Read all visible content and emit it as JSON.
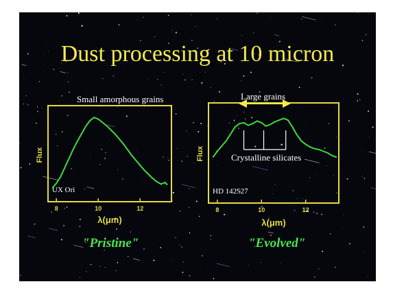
{
  "slide": {
    "title": "Dust processing at 10 micron",
    "left_caption": "Small amorphous grains",
    "right_caption": "Large grains",
    "right_annotation": "Crystalline silicates",
    "left_label": "\"Pristine\"",
    "right_label": "\"Evolved\""
  },
  "colors": {
    "background": "#05070d",
    "title": "#f4ea4e",
    "frame": "#e6dc3c",
    "curve": "#3ddc3a",
    "label_green": "#47e64a"
  },
  "chart_data": [
    {
      "type": "line",
      "title": "",
      "xlabel": "λ(μm)",
      "ylabel": "Flux",
      "xlim": [
        7.6,
        13.5
      ],
      "ylim": [
        0,
        1
      ],
      "xticks": [
        8,
        10,
        12
      ],
      "xtick_labels": [
        "8",
        "10",
        "12"
      ],
      "annotation": "UX Ori",
      "series": [
        {
          "x": [
            7.8,
            8.0,
            8.2,
            8.4,
            8.6,
            8.8,
            9.0,
            9.2,
            9.4,
            9.6,
            9.8,
            10.0,
            10.2,
            10.4,
            10.6,
            10.8,
            11.0,
            11.2,
            11.4,
            11.6,
            11.8,
            12.0,
            12.2,
            12.4,
            12.6,
            12.8,
            13.0,
            13.2,
            13.3
          ],
          "y": [
            0.08,
            0.14,
            0.22,
            0.33,
            0.44,
            0.55,
            0.65,
            0.74,
            0.83,
            0.9,
            0.94,
            0.92,
            0.88,
            0.84,
            0.79,
            0.74,
            0.68,
            0.62,
            0.55,
            0.48,
            0.42,
            0.36,
            0.3,
            0.25,
            0.2,
            0.16,
            0.13,
            0.15,
            0.12
          ]
        }
      ]
    },
    {
      "type": "line",
      "title": "",
      "xlabel": "λ(μm)",
      "ylabel": "Flux",
      "xlim": [
        7.6,
        13.5
      ],
      "ylim": [
        0,
        1
      ],
      "xticks": [
        8,
        10,
        12
      ],
      "xtick_labels": [
        "8",
        "10",
        "12"
      ],
      "annotation": "HD 142527",
      "series": [
        {
          "x": [
            7.8,
            8.0,
            8.2,
            8.4,
            8.6,
            8.8,
            9.0,
            9.2,
            9.4,
            9.6,
            9.8,
            10.0,
            10.2,
            10.4,
            10.6,
            10.8,
            11.0,
            11.2,
            11.4,
            11.6,
            11.8,
            12.0,
            12.2,
            12.4,
            12.6,
            12.8,
            13.0,
            13.2,
            13.4
          ],
          "y": [
            0.45,
            0.52,
            0.58,
            0.64,
            0.72,
            0.8,
            0.84,
            0.85,
            0.82,
            0.84,
            0.87,
            0.85,
            0.81,
            0.83,
            0.86,
            0.88,
            0.9,
            0.88,
            0.8,
            0.71,
            0.64,
            0.6,
            0.57,
            0.55,
            0.54,
            0.52,
            0.5,
            0.47,
            0.45
          ]
        }
      ],
      "markers_x": [
        9.2,
        10.1,
        11.1
      ]
    }
  ]
}
